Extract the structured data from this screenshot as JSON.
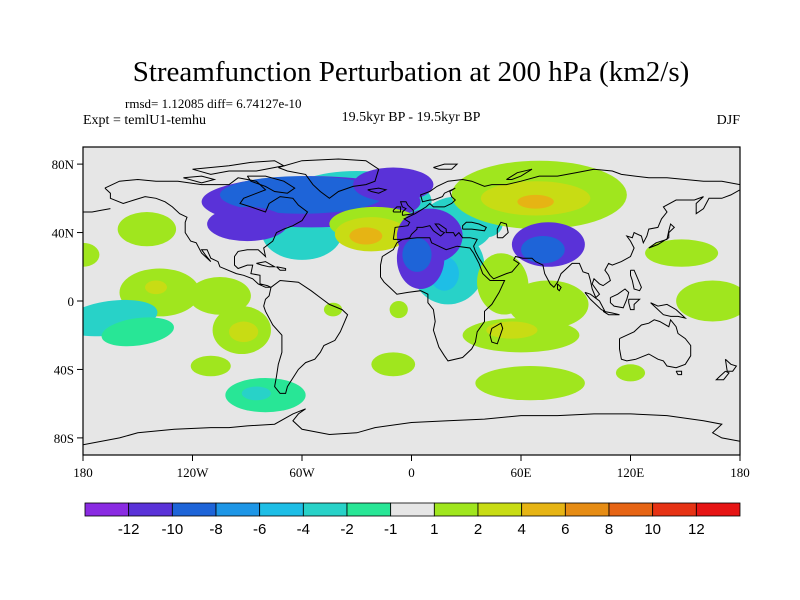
{
  "chart_data": {
    "type": "heatmap",
    "title": "Streamfunction Perturbation at 200 hPa (km2/s)",
    "stats_text": "rmsd= 1.12085 diff= 6.74127e-10",
    "experiment": "Expt = temlU1-temhu",
    "period": "19.5kyr BP - 19.5kyr BP",
    "season": "DJF",
    "x_range": [
      -180,
      180
    ],
    "y_range": [
      -90,
      90
    ],
    "x_ticks": [
      {
        "value": -180,
        "label": "180"
      },
      {
        "value": -120,
        "label": "120W"
      },
      {
        "value": -60,
        "label": "60W"
      },
      {
        "value": 0,
        "label": "0"
      },
      {
        "value": 60,
        "label": "60E"
      },
      {
        "value": 120,
        "label": "120E"
      },
      {
        "value": 180,
        "label": "180"
      }
    ],
    "y_ticks": [
      {
        "value": 80,
        "label": "80N"
      },
      {
        "value": 40,
        "label": "40N"
      },
      {
        "value": 0,
        "label": "0"
      },
      {
        "value": -40,
        "label": "40S"
      },
      {
        "value": -80,
        "label": "80S"
      }
    ],
    "colorbar": {
      "levels": [
        "-12",
        "-10",
        "-8",
        "-6",
        "-4",
        "-2",
        "-1",
        "1",
        "2",
        "4",
        "6",
        "8",
        "10",
        "12"
      ],
      "colors": [
        "#8a2be2",
        "#5a32d8",
        "#1e64d8",
        "#1e96e6",
        "#1ebee6",
        "#28d2c8",
        "#28e696",
        "#e6e6e6",
        "#a0e61e",
        "#c8dc14",
        "#e6b414",
        "#e68c14",
        "#e66414",
        "#e63214",
        "#e61414"
      ]
    },
    "colors": {
      "background": "#e6e6e6",
      "coast": "#000000"
    },
    "anomalies": [
      {
        "lon": -55,
        "lat": 58,
        "rx": 60,
        "ry": 15,
        "level": 1,
        "rot": 0
      },
      {
        "lon": -60,
        "lat": 62,
        "rx": 45,
        "ry": 11,
        "level": 2,
        "rot": 0
      },
      {
        "lon": -90,
        "lat": 45,
        "rx": 22,
        "ry": 10,
        "level": 1,
        "rot": 0
      },
      {
        "lon": -10,
        "lat": 68,
        "rx": 22,
        "ry": 10,
        "level": 1,
        "rot": 0
      },
      {
        "lon": -20,
        "lat": 45,
        "rx": 25,
        "ry": 10,
        "level": 8,
        "rot": 0
      },
      {
        "lon": -22,
        "lat": 39,
        "rx": 20,
        "ry": 10,
        "level": 9,
        "rot": 0
      },
      {
        "lon": -25,
        "lat": 38,
        "rx": 9,
        "ry": 5,
        "level": 10,
        "rot": 0
      },
      {
        "lon": 10,
        "lat": 38,
        "rx": 18,
        "ry": 16,
        "level": 1,
        "rot": 0
      },
      {
        "lon": 5,
        "lat": 25,
        "rx": 13,
        "ry": 18,
        "level": 1,
        "rot": 0
      },
      {
        "lon": 3,
        "lat": 27,
        "rx": 8,
        "ry": 10,
        "level": 2,
        "rot": 0
      },
      {
        "lon": 70,
        "lat": 62,
        "rx": 48,
        "ry": 20,
        "level": 8,
        "rot": 0
      },
      {
        "lon": 68,
        "lat": 60,
        "rx": 30,
        "ry": 10,
        "level": 9,
        "rot": 0
      },
      {
        "lon": 68,
        "lat": 58,
        "rx": 10,
        "ry": 4,
        "level": 10,
        "rot": 0
      },
      {
        "lon": 75,
        "lat": 33,
        "rx": 20,
        "ry": 13,
        "level": 1,
        "rot": 0
      },
      {
        "lon": 72,
        "lat": 30,
        "rx": 12,
        "ry": 8,
        "level": 2,
        "rot": 0
      },
      {
        "lon": -145,
        "lat": 42,
        "rx": 16,
        "ry": 10,
        "level": 8,
        "rot": 0
      },
      {
        "lon": 148,
        "lat": 28,
        "rx": 20,
        "ry": 8,
        "level": 8,
        "rot": 0
      },
      {
        "lon": -180,
        "lat": 27,
        "rx": 9,
        "ry": 7,
        "level": 8,
        "rot": 0
      },
      {
        "lon": -138,
        "lat": 5,
        "rx": 22,
        "ry": 14,
        "level": 8,
        "rot": 0
      },
      {
        "lon": -140,
        "lat": 8,
        "rx": 6,
        "ry": 4,
        "level": 9,
        "rot": 0
      },
      {
        "lon": -105,
        "lat": 3,
        "rx": 17,
        "ry": 11,
        "level": 8,
        "rot": 0
      },
      {
        "lon": -165,
        "lat": -10,
        "rx": 26,
        "ry": 10,
        "level": 5,
        "rot": -8
      },
      {
        "lon": -150,
        "lat": -18,
        "rx": 20,
        "ry": 8,
        "level": 6,
        "rot": -8
      },
      {
        "lon": -93,
        "lat": -17,
        "rx": 16,
        "ry": 14,
        "level": 8,
        "rot": 0
      },
      {
        "lon": -92,
        "lat": -18,
        "rx": 8,
        "ry": 6,
        "level": 9,
        "rot": 0
      },
      {
        "lon": -43,
        "lat": -5,
        "rx": 5,
        "ry": 4,
        "level": 8,
        "rot": 0
      },
      {
        "lon": 50,
        "lat": 10,
        "rx": 14,
        "ry": 18,
        "level": 8,
        "rot": -10
      },
      {
        "lon": 75,
        "lat": -2,
        "rx": 22,
        "ry": 14,
        "level": 8,
        "rot": 0
      },
      {
        "lon": 60,
        "lat": -20,
        "rx": 32,
        "ry": 10,
        "level": 8,
        "rot": 0
      },
      {
        "lon": 55,
        "lat": -17,
        "rx": 14,
        "ry": 5,
        "level": 9,
        "rot": 0
      },
      {
        "lon": 165,
        "lat": 0,
        "rx": 20,
        "ry": 12,
        "level": 8,
        "rot": 0
      },
      {
        "lon": -80,
        "lat": -55,
        "rx": 22,
        "ry": 10,
        "level": 6,
        "rot": 0
      },
      {
        "lon": -85,
        "lat": -54,
        "rx": 8,
        "ry": 4,
        "level": 5,
        "rot": 0
      },
      {
        "lon": -110,
        "lat": -38,
        "rx": 11,
        "ry": 6,
        "level": 8,
        "rot": 0
      },
      {
        "lon": -10,
        "lat": -37,
        "rx": 12,
        "ry": 7,
        "level": 8,
        "rot": 0
      },
      {
        "lon": 65,
        "lat": -48,
        "rx": 30,
        "ry": 10,
        "level": 8,
        "rot": 0
      },
      {
        "lon": 120,
        "lat": -42,
        "rx": 8,
        "ry": 5,
        "level": 8,
        "rot": 0
      },
      {
        "lon": -7,
        "lat": -5,
        "rx": 5,
        "ry": 5,
        "level": 8,
        "rot": 0
      }
    ],
    "cyan_region": {
      "lon": -60,
      "lat": 50,
      "level": 5
    },
    "cyan_extensions": [
      {
        "lon": -30,
        "lat": 60,
        "rx": 40,
        "ry": 16,
        "level": 5,
        "rot": 0
      },
      {
        "lon": -60,
        "lat": 40,
        "rx": 22,
        "ry": 16,
        "level": 5,
        "rot": 0
      },
      {
        "lon": 20,
        "lat": 20,
        "rx": 20,
        "ry": 22,
        "level": 5,
        "rot": 0
      },
      {
        "lon": 25,
        "lat": 45,
        "rx": 20,
        "ry": 16,
        "level": 5,
        "rot": 0
      },
      {
        "lon": 40,
        "lat": 45,
        "rx": 10,
        "ry": 8,
        "level": 5,
        "rot": 0
      },
      {
        "lon": -5,
        "lat": 58,
        "rx": 16,
        "ry": 12,
        "level": 5,
        "rot": 0
      },
      {
        "lon": 18,
        "lat": 16,
        "rx": 8,
        "ry": 10,
        "level": 4,
        "rot": 0
      },
      {
        "lon": -32,
        "lat": 60,
        "rx": 15,
        "ry": 5,
        "level": 4,
        "rot": 0
      },
      {
        "lon": -150,
        "lat": -8,
        "rx": 8,
        "ry": 5,
        "level": 4,
        "rot": 0
      }
    ]
  }
}
